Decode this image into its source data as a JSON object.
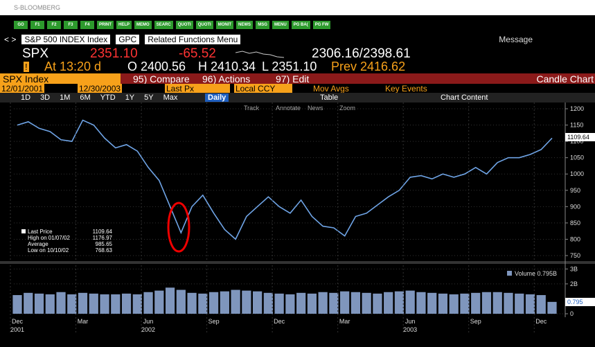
{
  "window": {
    "title": "S-BLOOMBERG"
  },
  "function_keys": [
    "GO",
    "F1",
    "F2",
    "F3",
    "F4",
    "PRINT",
    "HELP",
    "MEMO",
    "SEARC",
    "QUOTI",
    "QUOTI",
    "MONIT",
    "NEWS",
    "MSG",
    "MENU",
    "PG BA(",
    "PG FW"
  ],
  "toolbar": {
    "security": "S&P 500 INDEX Index",
    "gpc": "GPC",
    "related": "Related Functions Menu",
    "message": "Message"
  },
  "quote": {
    "ticker": "SPX",
    "last": "2351.10",
    "change": "-65.52",
    "range": "2306.16/2398.61",
    "time": "At 13:20 d",
    "open": "O 2400.56",
    "high": "H 2410.34",
    "low": "L 2351.10",
    "prev": "Prev 2416.62"
  },
  "menu": {
    "security": "SPX Index",
    "compare": "95) Compare",
    "actions": "96) Actions",
    "edit": "97) Edit",
    "chart_type": "Candle Chart"
  },
  "settings": {
    "start": "12/01/2001",
    "end": "12/30/2003",
    "field": "Last Px",
    "currency": "Local CCY",
    "mov_avgs": "Mov Avgs",
    "key_events": "Key Events"
  },
  "periods": [
    "1D",
    "3D",
    "1M",
    "6M",
    "YTD",
    "1Y",
    "5Y",
    "Max"
  ],
  "frequency": "Daily",
  "table": "Table",
  "chart_content": "Chart Content",
  "chart_tools": [
    "Track",
    "Annotate",
    "News",
    "Zoom"
  ],
  "legend": [
    {
      "label": "Last Price",
      "value": "1109.64"
    },
    {
      "label": "High on 01/07/02",
      "value": "1176.97"
    },
    {
      "label": "Average",
      "value": "985.65"
    },
    {
      "label": "Low on 10/10/02",
      "value": "768.63"
    }
  ],
  "chart_data": [
    {
      "type": "line",
      "color": "#6fa4e6",
      "categories": [
        "Dec",
        null,
        null,
        null,
        null,
        null,
        "Mar",
        null,
        null,
        null,
        null,
        null,
        "Jun",
        null,
        null,
        null,
        null,
        null,
        "Sep",
        null,
        null,
        null,
        null,
        null,
        "Dec",
        null,
        null,
        null,
        null,
        null,
        "Mar",
        null,
        null,
        null,
        null,
        null,
        "Jun",
        null,
        null,
        null,
        null,
        null,
        "Sep",
        null,
        null,
        null,
        null,
        null,
        "Dec",
        null
      ],
      "year_labels": [
        "2001",
        null,
        null,
        null,
        null,
        null,
        null,
        null,
        null,
        null,
        null,
        null,
        "2002",
        null,
        null,
        null,
        null,
        null,
        null,
        null,
        null,
        null,
        null,
        null,
        null,
        null,
        null,
        null,
        null,
        null,
        null,
        null,
        null,
        null,
        null,
        null,
        "2003",
        null,
        null,
        null,
        null,
        null,
        null,
        null,
        null,
        null,
        null,
        null,
        null,
        null
      ],
      "values": [
        1150,
        1160,
        1140,
        1130,
        1105,
        1100,
        1165,
        1150,
        1110,
        1080,
        1090,
        1070,
        1020,
        980,
        900,
        820,
        900,
        935,
        880,
        830,
        800,
        870,
        900,
        930,
        900,
        880,
        920,
        870,
        840,
        835,
        810,
        870,
        880,
        905,
        930,
        950,
        990,
        995,
        985,
        1000,
        990,
        1000,
        1020,
        1000,
        1035,
        1050,
        1050,
        1060,
        1075,
        1110
      ],
      "ylim": [
        750,
        1200
      ],
      "yticks": [
        750,
        800,
        850,
        900,
        950,
        1000,
        1050,
        1100,
        1150,
        1200
      ],
      "grid": true
    },
    {
      "type": "bar",
      "color": "#7f96bd",
      "legend_label": "Volume 0.795B",
      "values": [
        1.25,
        1.4,
        1.35,
        1.3,
        1.45,
        1.3,
        1.4,
        1.35,
        1.3,
        1.3,
        1.35,
        1.3,
        1.45,
        1.55,
        1.75,
        1.6,
        1.4,
        1.35,
        1.45,
        1.5,
        1.6,
        1.55,
        1.5,
        1.4,
        1.35,
        1.3,
        1.4,
        1.35,
        1.45,
        1.4,
        1.5,
        1.45,
        1.4,
        1.35,
        1.45,
        1.5,
        1.55,
        1.45,
        1.4,
        1.35,
        1.3,
        1.35,
        1.4,
        1.45,
        1.45,
        1.4,
        1.35,
        1.3,
        1.25,
        0.795
      ],
      "ylim": [
        0,
        3.2
      ],
      "yticks": [
        0,
        {
          "value": 2,
          "label": "2B"
        },
        {
          "value": 3,
          "label": "3B"
        }
      ],
      "grid": true
    }
  ]
}
